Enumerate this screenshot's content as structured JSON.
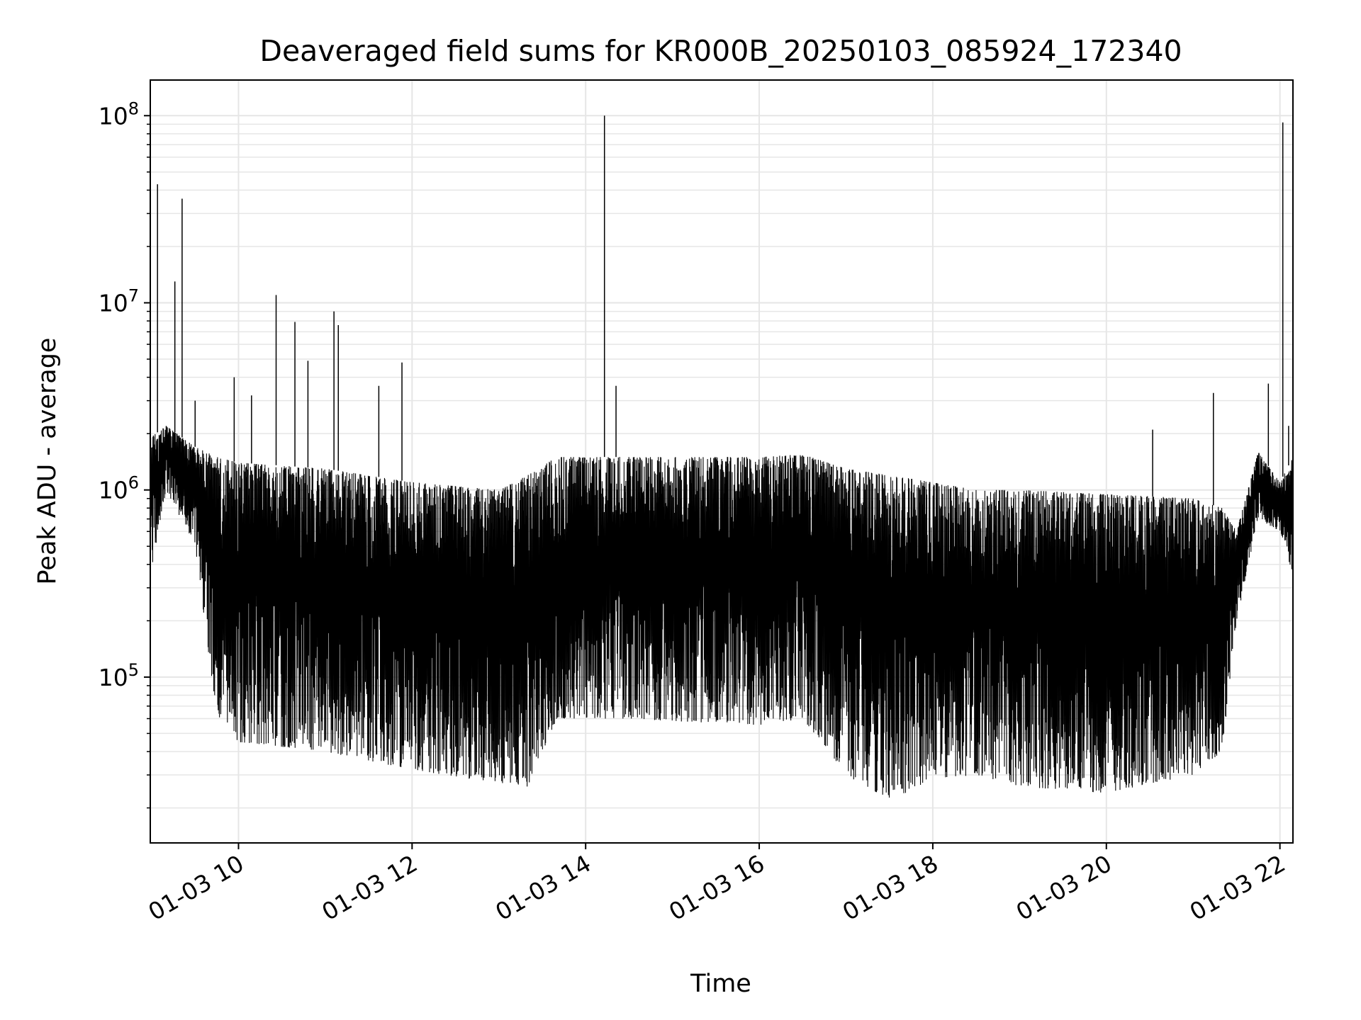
{
  "chart_data": {
    "type": "line",
    "title": "Deaveraged field sums for KR000B_20250103_085924_172340",
    "xlabel": "Time",
    "ylabel": "Peak ADU - average",
    "yscale": "log",
    "xlim": [
      "2025-01-03 08:59",
      "2025-01-03 22:09"
    ],
    "ylim": [
      13000,
      155000000
    ],
    "x_ticks": [
      {
        "t": "2025-01-03 10:00",
        "label": "01-03 10"
      },
      {
        "t": "2025-01-03 12:00",
        "label": "01-03 12"
      },
      {
        "t": "2025-01-03 14:00",
        "label": "01-03 14"
      },
      {
        "t": "2025-01-03 16:00",
        "label": "01-03 16"
      },
      {
        "t": "2025-01-03 18:00",
        "label": "01-03 18"
      },
      {
        "t": "2025-01-03 20:00",
        "label": "01-03 20"
      },
      {
        "t": "2025-01-03 22:00",
        "label": "01-03 22"
      }
    ],
    "y_ticks": [
      {
        "value": 100000,
        "base": "10",
        "exp": "5"
      },
      {
        "value": 1000000,
        "base": "10",
        "exp": "6"
      },
      {
        "value": 10000000,
        "base": "10",
        "exp": "7"
      },
      {
        "value": 100000000,
        "base": "10",
        "exp": "8"
      }
    ],
    "grid": true,
    "line_color": "#000000",
    "grid_color": "#e6e6e6",
    "series": [
      {
        "envelope": [
          {
            "t": "2025-01-03 08:59",
            "high": 1900000,
            "low": 350000
          },
          {
            "t": "2025-01-03 09:10",
            "high": 2200000,
            "low": 1000000
          },
          {
            "t": "2025-01-03 09:30",
            "high": 1700000,
            "low": 500000
          },
          {
            "t": "2025-01-03 09:45",
            "high": 1500000,
            "low": 60000
          },
          {
            "t": "2025-01-03 10:00",
            "high": 1400000,
            "low": 45000
          },
          {
            "t": "2025-01-03 11:00",
            "high": 1300000,
            "low": 40000
          },
          {
            "t": "2025-01-03 12:00",
            "high": 1100000,
            "low": 32000
          },
          {
            "t": "2025-01-03 13:00",
            "high": 1000000,
            "low": 27000
          },
          {
            "t": "2025-01-03 13:20",
            "high": 1200000,
            "low": 26000
          },
          {
            "t": "2025-01-03 13:40",
            "high": 1500000,
            "low": 60000
          },
          {
            "t": "2025-01-03 14:30",
            "high": 1500000,
            "low": 60000
          },
          {
            "t": "2025-01-03 16:00",
            "high": 1500000,
            "low": 55000
          },
          {
            "t": "2025-01-03 16:30",
            "high": 1550000,
            "low": 60000
          },
          {
            "t": "2025-01-03 17:00",
            "high": 1300000,
            "low": 30000
          },
          {
            "t": "2025-01-03 17:30",
            "high": 1200000,
            "low": 22000
          },
          {
            "t": "2025-01-03 18:00",
            "high": 1100000,
            "low": 28000
          },
          {
            "t": "2025-01-03 18:30",
            "high": 1000000,
            "low": 30000
          },
          {
            "t": "2025-01-03 19:00",
            "high": 1000000,
            "low": 26000
          },
          {
            "t": "2025-01-03 20:00",
            "high": 950000,
            "low": 24000
          },
          {
            "t": "2025-01-03 21:00",
            "high": 900000,
            "low": 30000
          },
          {
            "t": "2025-01-03 21:20",
            "high": 800000,
            "low": 40000
          },
          {
            "t": "2025-01-03 21:30",
            "high": 600000,
            "low": 200000
          },
          {
            "t": "2025-01-03 21:45",
            "high": 1600000,
            "low": 700000
          },
          {
            "t": "2025-01-03 22:00",
            "high": 1100000,
            "low": 600000
          },
          {
            "t": "2025-01-03 22:09",
            "high": 1500000,
            "low": 350000
          }
        ],
        "spikes": [
          {
            "t": "2025-01-03 09:04",
            "value": 43000000
          },
          {
            "t": "2025-01-03 09:16",
            "value": 13000000
          },
          {
            "t": "2025-01-03 09:21",
            "value": 36000000
          },
          {
            "t": "2025-01-03 09:30",
            "value": 3000000
          },
          {
            "t": "2025-01-03 09:57",
            "value": 4000000
          },
          {
            "t": "2025-01-03 10:09",
            "value": 3200000
          },
          {
            "t": "2025-01-03 10:26",
            "value": 11000000
          },
          {
            "t": "2025-01-03 10:39",
            "value": 7900000
          },
          {
            "t": "2025-01-03 10:48",
            "value": 4900000
          },
          {
            "t": "2025-01-03 11:06",
            "value": 9000000
          },
          {
            "t": "2025-01-03 11:09",
            "value": 7600000
          },
          {
            "t": "2025-01-03 11:37",
            "value": 3600000
          },
          {
            "t": "2025-01-03 11:53",
            "value": 4800000
          },
          {
            "t": "2025-01-03 14:13",
            "value": 100000000
          },
          {
            "t": "2025-01-03 14:21",
            "value": 3600000
          },
          {
            "t": "2025-01-03 20:32",
            "value": 2100000
          },
          {
            "t": "2025-01-03 21:14",
            "value": 3300000
          },
          {
            "t": "2025-01-03 21:52",
            "value": 3700000
          },
          {
            "t": "2025-01-03 22:02",
            "value": 92000000
          },
          {
            "t": "2025-01-03 22:06",
            "value": 2200000
          }
        ]
      }
    ]
  }
}
